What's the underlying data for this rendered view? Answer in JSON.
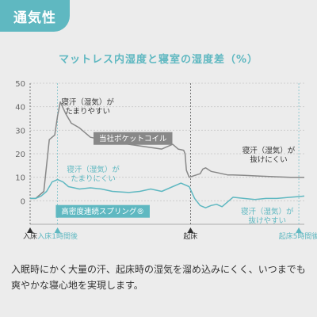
{
  "badge": "通気性",
  "chart_data": {
    "type": "line",
    "title": "マットレス内湿度と寝室の湿度差（%）",
    "ylim": [
      -10,
      50
    ],
    "yticks": [
      0,
      10,
      20,
      30,
      40,
      50
    ],
    "grid": true,
    "x_range": [
      0,
      100
    ],
    "x_markers": [
      {
        "label": "入床",
        "x": 0,
        "color": "#333333"
      },
      {
        "label": "入床1時間後",
        "x": 10,
        "color": "#5fb8c1"
      },
      {
        "label": "起床",
        "x": 58.5,
        "color": "#333333"
      },
      {
        "label": "起床5時間後",
        "x": 98,
        "color": "#5fb8c1"
      }
    ],
    "series": [
      {
        "name": "当社ポケットコイル",
        "color": "#888888",
        "x": [
          0,
          2,
          5,
          7,
          9,
          10,
          11,
          13,
          15,
          18,
          22,
          26,
          30,
          36,
          42,
          48,
          52,
          54,
          56,
          56.5,
          57,
          58,
          62,
          63,
          64,
          66,
          68,
          70,
          72,
          74,
          78,
          84,
          90,
          95,
          100
        ],
        "y": [
          1,
          1,
          4,
          26,
          28,
          36,
          42,
          37,
          33,
          31,
          27,
          26,
          25.5,
          24,
          23,
          22,
          24,
          22,
          21.5,
          20,
          13,
          10,
          11.5,
          13.5,
          14,
          12.5,
          12,
          11.5,
          11,
          11,
          10.8,
          10.5,
          10.2,
          10,
          10
        ]
      },
      {
        "name": "高密度連続スプリング®",
        "color": "#5fb8c1",
        "x": [
          0,
          2,
          4,
          6,
          8,
          10,
          12,
          14,
          18,
          22,
          26,
          30,
          36,
          40,
          44,
          48,
          52,
          55,
          58,
          60,
          62,
          64,
          66,
          68,
          70,
          74,
          78,
          82,
          86,
          90,
          95,
          100
        ],
        "y": [
          1,
          1,
          2,
          4,
          8,
          9,
          8,
          6,
          5,
          5.5,
          5,
          4,
          3.5,
          4,
          5,
          4,
          6,
          7.5,
          6,
          1,
          -2,
          -3,
          -2,
          -1.5,
          -2.5,
          1.5,
          1,
          0.5,
          1,
          1,
          1.5,
          2
        ]
      }
    ],
    "annotations": [
      {
        "text": "寝汗（湿気）が\nたまりやすい",
        "x": 21,
        "y": 40,
        "color": "#333333"
      },
      {
        "text": "当社ポケットコイル",
        "x": 37.5,
        "y": 26.5,
        "color": "#ffffff",
        "background": "#888888"
      },
      {
        "text": "寝汗（湿気）が\n抜けにくい",
        "x": 87,
        "y": 19.5,
        "color": "#333333"
      },
      {
        "text": "寝汗（湿気）が\nたまりにくい",
        "x": 23,
        "y": 11.5,
        "color": "#5fb8c1"
      },
      {
        "text": "高密度連続スプリング®",
        "x": 26.5,
        "y": -4.5,
        "color": "#ffffff",
        "background": "#5fb8c1"
      },
      {
        "text": "寝汗（湿気）が\n抜けやすい",
        "x": 86.5,
        "y": -6.5,
        "color": "#5fb8c1"
      }
    ]
  },
  "description": "入眠時にかく大量の汗、起床時の湿気を溜め込みにくく、いつまでも爽やかな寝心地を実現します。"
}
